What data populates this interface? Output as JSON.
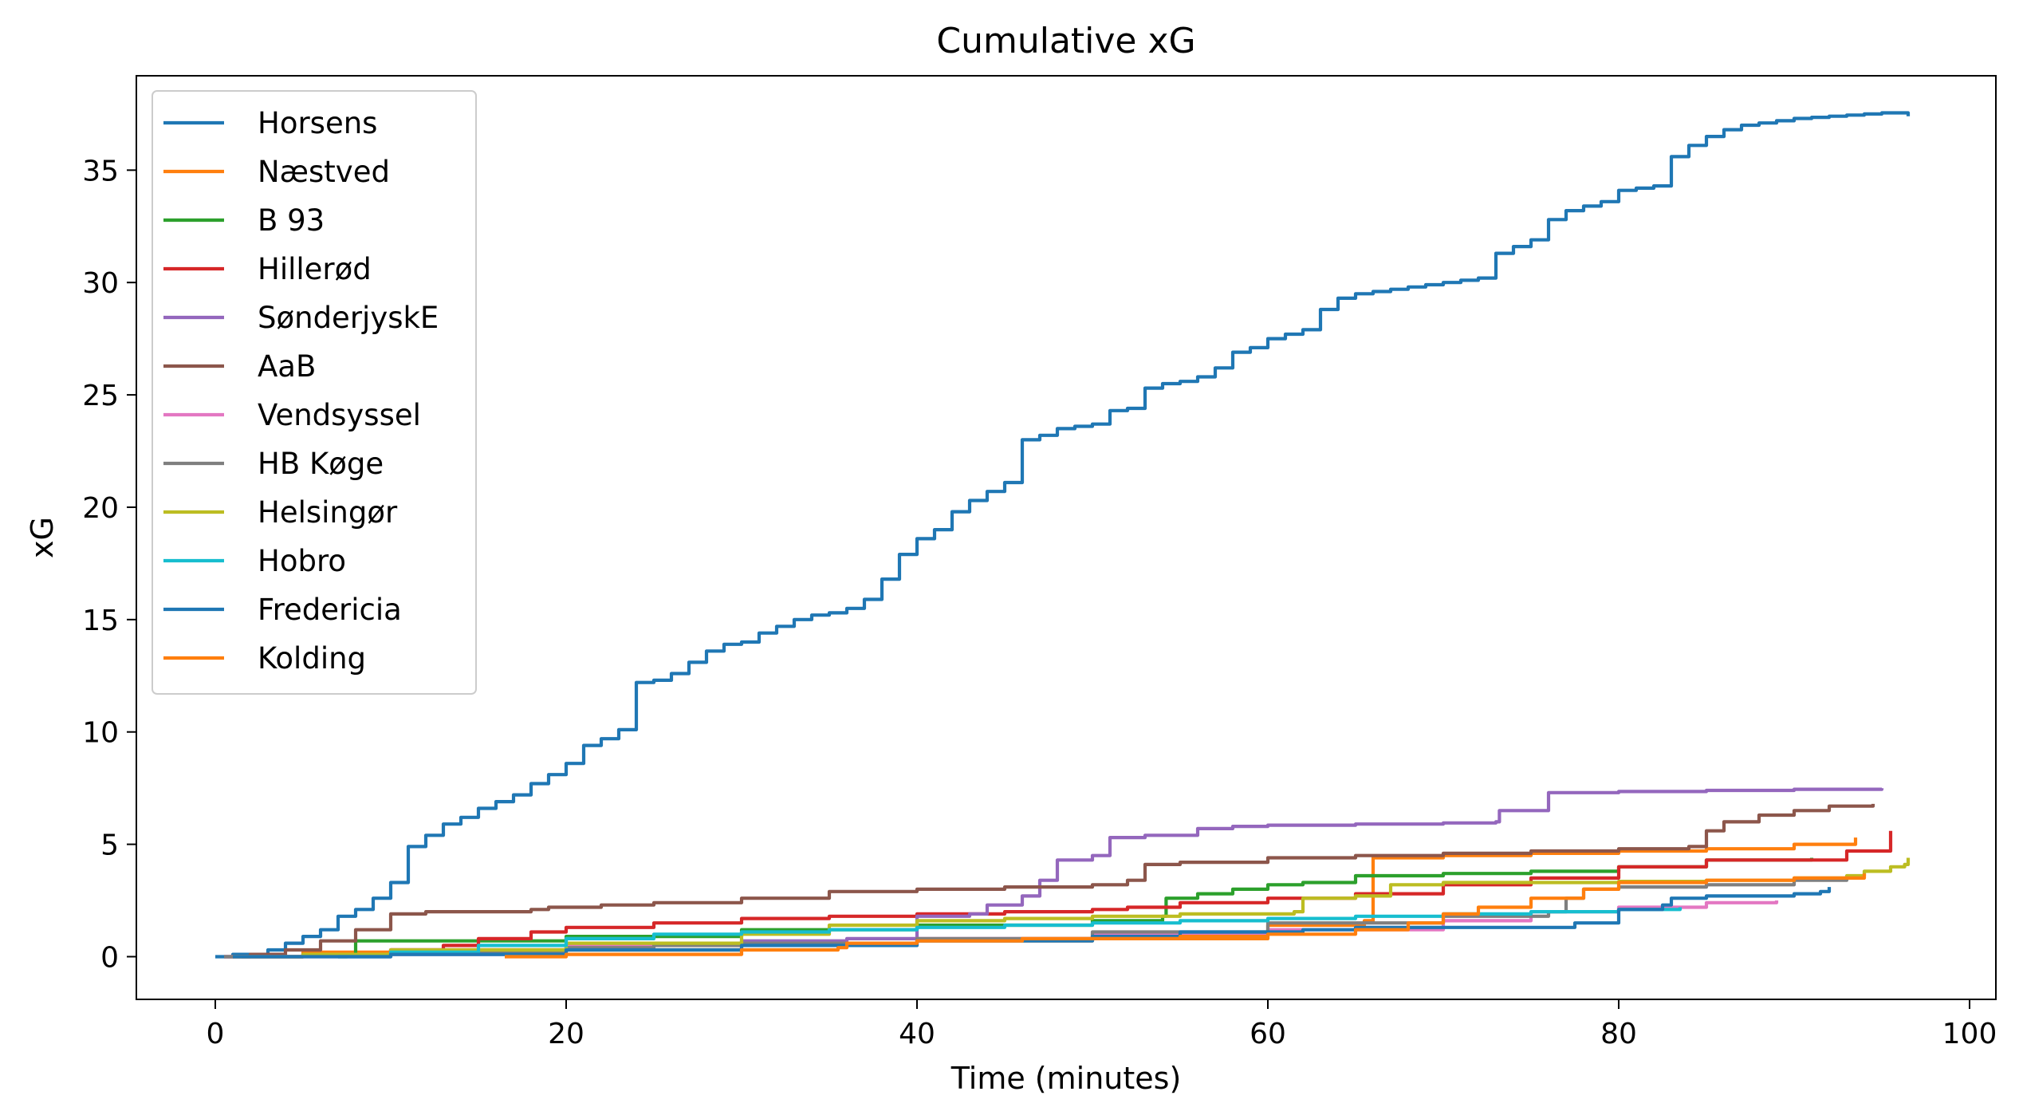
{
  "chart_data": {
    "type": "line",
    "title": "Cumulative xG",
    "xlabel": "Time (minutes)",
    "ylabel": "xG",
    "xlim": [
      -4.5,
      101.5
    ],
    "ylim": [
      -1.9,
      39.2
    ],
    "xticks": [
      0,
      20,
      40,
      60,
      80,
      100
    ],
    "yticks": [
      0,
      5,
      10,
      15,
      20,
      25,
      30,
      35
    ],
    "grid": false,
    "legend_position": "upper-left",
    "series": [
      {
        "name": "Horsens",
        "color": "#1f77b4",
        "x": [
          0,
          1,
          3,
          4,
          5,
          6,
          7,
          8,
          9,
          10,
          11,
          12,
          13,
          14,
          15,
          16,
          17,
          18,
          19,
          20,
          21,
          22,
          23,
          24,
          25,
          26,
          27,
          28,
          29,
          30,
          31,
          32,
          33,
          34,
          35,
          36,
          37,
          38,
          39,
          40,
          41,
          42,
          43,
          44,
          45,
          46,
          47,
          48,
          49,
          50,
          51,
          52,
          53,
          54,
          55,
          56,
          57,
          58,
          59,
          60,
          61,
          62,
          63,
          64,
          65,
          66,
          67,
          68,
          69,
          70,
          71,
          72,
          73,
          74,
          75,
          76,
          77,
          78,
          79,
          80,
          81,
          82,
          83,
          84,
          85,
          86,
          87,
          88,
          89,
          90,
          91,
          92,
          93,
          94,
          95,
          96.5
        ],
        "y": [
          0,
          0.1,
          0.3,
          0.6,
          0.9,
          1.2,
          1.8,
          2.1,
          2.6,
          3.3,
          4.9,
          5.4,
          5.9,
          6.2,
          6.6,
          6.9,
          7.2,
          7.7,
          8.1,
          8.6,
          9.4,
          9.7,
          10.1,
          12.2,
          12.3,
          12.6,
          13.1,
          13.6,
          13.9,
          14.0,
          14.4,
          14.7,
          15.0,
          15.2,
          15.3,
          15.5,
          15.9,
          16.8,
          17.9,
          18.6,
          19.0,
          19.8,
          20.3,
          20.7,
          21.1,
          23.0,
          23.2,
          23.5,
          23.6,
          23.7,
          24.3,
          24.4,
          25.3,
          25.5,
          25.6,
          25.8,
          26.2,
          26.9,
          27.1,
          27.5,
          27.7,
          27.9,
          28.8,
          29.3,
          29.5,
          29.6,
          29.7,
          29.8,
          29.9,
          30.0,
          30.1,
          30.2,
          31.3,
          31.6,
          31.9,
          32.8,
          33.2,
          33.4,
          33.6,
          34.1,
          34.2,
          34.3,
          35.6,
          36.1,
          36.5,
          36.8,
          37.0,
          37.1,
          37.2,
          37.3,
          37.35,
          37.4,
          37.45,
          37.5,
          37.55,
          37.4
        ]
      },
      {
        "name": "Næstved",
        "color": "#ff7f0e",
        "x": [
          0.5,
          5,
          10,
          20,
          30,
          40,
          50,
          60,
          65.5,
          66,
          70,
          75,
          80,
          85,
          90,
          93.5
        ],
        "y": [
          0,
          0.2,
          0.3,
          0.3,
          0.5,
          0.7,
          0.8,
          1.4,
          1.6,
          4.4,
          4.5,
          4.6,
          4.7,
          4.8,
          5.0,
          5.3
        ]
      },
      {
        "name": "B 93",
        "color": "#2ca02c",
        "x": [
          7,
          7.5,
          8,
          10,
          13,
          20,
          30,
          40,
          50,
          54,
          54.2,
          56,
          58,
          60,
          62,
          65,
          70,
          75,
          80,
          85,
          91
        ],
        "y": [
          0,
          0.1,
          0.7,
          0.7,
          0.7,
          0.9,
          1.2,
          1.4,
          1.6,
          1.8,
          2.6,
          2.8,
          3.0,
          3.2,
          3.3,
          3.6,
          3.7,
          3.8,
          4.0,
          4.3,
          4.4
        ]
      },
      {
        "name": "Hillerød",
        "color": "#d62728",
        "x": [
          1.5,
          5,
          10,
          13,
          15,
          18,
          20,
          25,
          30,
          35,
          40,
          45,
          50,
          52,
          55,
          60,
          65,
          70,
          75,
          80,
          85,
          90,
          93,
          95.5
        ],
        "y": [
          0,
          0.1,
          0.3,
          0.5,
          0.8,
          1.1,
          1.3,
          1.5,
          1.7,
          1.8,
          1.9,
          2.0,
          2.1,
          2.2,
          2.4,
          2.6,
          2.8,
          3.2,
          3.5,
          4.0,
          4.3,
          4.3,
          4.7,
          5.6
        ]
      },
      {
        "name": "SønderjyskE",
        "color": "#9467bd",
        "x": [
          0.5,
          5,
          10,
          19,
          20,
          30,
          36,
          40,
          43,
          44,
          46,
          47,
          48,
          50,
          51,
          53,
          56,
          58,
          60,
          65,
          70,
          73,
          73.2,
          76,
          80,
          85,
          90,
          95
        ],
        "y": [
          0,
          0.1,
          0.1,
          0.2,
          0.6,
          0.7,
          0.8,
          1.8,
          1.9,
          2.3,
          2.7,
          3.4,
          4.3,
          4.5,
          5.3,
          5.4,
          5.7,
          5.8,
          5.85,
          5.9,
          5.95,
          6.0,
          6.5,
          7.3,
          7.35,
          7.4,
          7.45,
          7.5
        ]
      },
      {
        "name": "AaB",
        "color": "#8c564b",
        "x": [
          1,
          2,
          4,
          6,
          8,
          10,
          12,
          15,
          18,
          19,
          22,
          25,
          30,
          35,
          40,
          45,
          50,
          52,
          53,
          55,
          60,
          65,
          70,
          75,
          80,
          84,
          85,
          86,
          88,
          90,
          92,
          94.5
        ],
        "y": [
          0,
          0.1,
          0.3,
          0.7,
          1.2,
          1.9,
          2.0,
          2.0,
          2.1,
          2.2,
          2.3,
          2.4,
          2.6,
          2.9,
          3.0,
          3.1,
          3.2,
          3.4,
          4.1,
          4.2,
          4.4,
          4.5,
          4.6,
          4.7,
          4.8,
          4.9,
          5.6,
          6.0,
          6.3,
          6.5,
          6.7,
          6.8
        ]
      },
      {
        "name": "Vendsyssel",
        "color": "#e377c2",
        "x": [
          0.5,
          10,
          20,
          30,
          40,
          50,
          60,
          70,
          75,
          80,
          85,
          89
        ],
        "y": [
          0,
          0.3,
          0.5,
          0.6,
          0.8,
          1.0,
          1.2,
          1.6,
          2.0,
          2.2,
          2.4,
          2.5
        ]
      },
      {
        "name": "HB Køge",
        "color": "#7f7f7f",
        "x": [
          0.5,
          5,
          10,
          20,
          25,
          30,
          40,
          50,
          60,
          70,
          76,
          77,
          78,
          80,
          85,
          90,
          93
        ],
        "y": [
          0,
          0.1,
          0.2,
          0.4,
          0.5,
          0.6,
          0.8,
          1.1,
          1.5,
          1.8,
          2.0,
          2.6,
          3.0,
          3.1,
          3.2,
          3.4,
          3.6
        ]
      },
      {
        "name": "Helsingør",
        "color": "#bcbd22",
        "x": [
          1,
          5,
          10,
          20,
          30,
          35,
          40,
          45,
          50,
          55,
          60,
          61.5,
          62,
          65,
          67,
          70,
          75,
          80,
          85,
          90,
          93,
          94,
          95.5,
          96.3,
          96.5
        ],
        "y": [
          0,
          0.1,
          0.3,
          0.6,
          1.0,
          1.4,
          1.6,
          1.7,
          1.8,
          1.9,
          1.9,
          2.0,
          2.6,
          2.7,
          3.2,
          3.3,
          3.3,
          3.35,
          3.4,
          3.5,
          3.6,
          3.8,
          4.0,
          4.1,
          4.4
        ]
      },
      {
        "name": "Hobro",
        "color": "#17becf",
        "x": [
          7,
          10,
          15,
          20,
          25,
          30,
          35,
          40,
          45,
          50,
          55,
          60,
          65,
          70,
          75,
          80,
          83.5
        ],
        "y": [
          0,
          0.2,
          0.5,
          0.8,
          1.0,
          1.1,
          1.2,
          1.3,
          1.4,
          1.5,
          1.6,
          1.7,
          1.8,
          1.9,
          2.0,
          2.1,
          2.2
        ]
      },
      {
        "name": "Fredericia",
        "color": "#1f77b4",
        "x": [
          1,
          10,
          20,
          30,
          40,
          50,
          55,
          62,
          65,
          77.5,
          80,
          82.5,
          83,
          85,
          90,
          91.5,
          92
        ],
        "y": [
          0,
          0.1,
          0.3,
          0.5,
          0.7,
          0.9,
          1.1,
          1.2,
          1.3,
          1.5,
          2.1,
          2.3,
          2.6,
          2.7,
          2.8,
          2.9,
          3.1
        ]
      },
      {
        "name": "Kolding",
        "color": "#ff7f0e",
        "x": [
          16.5,
          20,
          30,
          35.5,
          36,
          40,
          44,
          46,
          50,
          55,
          60,
          65,
          68,
          70,
          72,
          75,
          78,
          80,
          85,
          90,
          94
        ],
        "y": [
          0,
          0.1,
          0.3,
          0.4,
          0.6,
          0.7,
          0.7,
          0.8,
          0.8,
          0.9,
          1.0,
          1.2,
          1.5,
          1.9,
          2.2,
          2.6,
          3.0,
          3.3,
          3.4,
          3.5,
          3.7
        ]
      }
    ]
  }
}
